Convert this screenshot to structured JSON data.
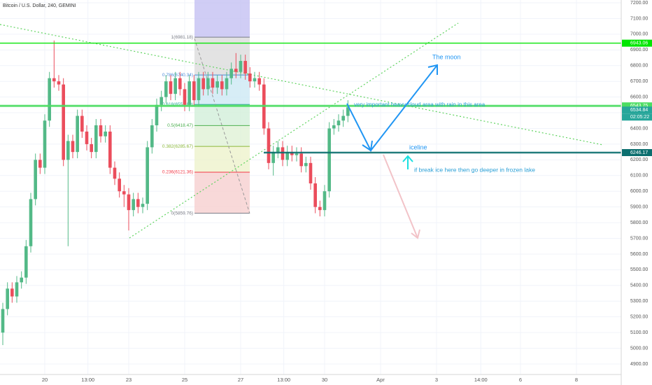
{
  "chart_data": {
    "type": "candlestick",
    "title": "Bitcoin / U.S. Dollar, 240, GEMINI",
    "x": [
      18.5,
      18.667,
      18.833,
      19,
      19.167,
      19.333,
      19.5,
      19.667,
      19.833,
      20,
      20.167,
      20.333,
      20.5,
      20.667,
      20.833,
      21,
      21.167,
      21.333,
      21.5,
      21.667,
      21.833,
      22,
      22.167,
      22.333,
      22.5,
      22.667,
      22.833,
      23,
      23.167,
      23.333,
      23.5,
      23.667,
      23.833,
      24,
      24.167,
      24.333,
      24.5,
      24.667,
      24.833,
      25,
      25.167,
      25.333,
      25.5,
      25.667,
      25.833,
      26,
      26.167,
      26.333,
      26.5,
      26.667,
      26.833,
      27,
      27.167,
      27.333,
      27.5,
      27.667,
      27.833,
      28,
      28.167,
      28.333,
      28.5,
      28.667,
      28.833,
      29,
      29.167,
      29.333,
      29.5,
      29.667,
      29.833,
      30,
      30.167,
      30.333,
      30.5,
      30.667,
      30.833
    ],
    "open": [
      5100,
      5250,
      5380,
      5330,
      5420,
      5450,
      5650,
      5950,
      6200,
      6150,
      6450,
      6720,
      6700,
      6680,
      6200,
      6320,
      6250,
      6480,
      6380,
      6300,
      6250,
      6420,
      6350,
      6380,
      6150,
      6080,
      6000,
      5980,
      5880,
      5950,
      5900,
      5920,
      6280,
      6420,
      6550,
      6600,
      6700,
      6620,
      6720,
      6650,
      6550,
      6700,
      6580,
      6720,
      6650,
      6720,
      6660,
      6700,
      6650,
      6720,
      6780,
      6760,
      6830,
      6750,
      6700,
      6720,
      6680,
      6400,
      6180,
      6250,
      6280,
      6200,
      6250,
      6230,
      6240,
      6160,
      6180,
      6050,
      5900,
      5880,
      6000,
      6400,
      6420,
      6450,
      6480
    ],
    "high": [
      5290,
      5420,
      5420,
      5460,
      5490,
      5690,
      5990,
      6240,
      6240,
      6490,
      6760,
      6960,
      6740,
      6720,
      6360,
      6360,
      6520,
      6520,
      6420,
      6340,
      6460,
      6460,
      6420,
      6420,
      6190,
      6120,
      6040,
      6020,
      5990,
      5990,
      5960,
      6320,
      6460,
      6590,
      6640,
      6740,
      6740,
      6760,
      6760,
      6690,
      6740,
      6740,
      6760,
      6760,
      6760,
      6760,
      6740,
      6740,
      6760,
      6820,
      6880,
      6870,
      6870,
      6790,
      6760,
      6760,
      6720,
      6440,
      6290,
      6320,
      6320,
      6290,
      6290,
      6280,
      6280,
      6220,
      6220,
      6090,
      5940,
      6040,
      6440,
      6460,
      6490,
      6520,
      6580
    ],
    "low": [
      5020,
      5210,
      5290,
      5290,
      5380,
      5410,
      5610,
      5910,
      6110,
      6110,
      6410,
      6660,
      6640,
      6160,
      5650,
      6210,
      6210,
      6340,
      6260,
      6210,
      6210,
      6310,
      6310,
      6110,
      6040,
      5960,
      5900,
      5750,
      5840,
      5860,
      5860,
      5880,
      6240,
      6380,
      6510,
      6560,
      6580,
      6580,
      6610,
      6510,
      6510,
      6540,
      6540,
      6610,
      6610,
      6620,
      6620,
      6610,
      6610,
      6680,
      6720,
      6720,
      6710,
      6660,
      6660,
      6640,
      6360,
      6140,
      6100,
      6210,
      6160,
      6160,
      6190,
      6190,
      6120,
      6120,
      6010,
      5860,
      5840,
      5840,
      5960,
      6360,
      6380,
      6410,
      6440
    ],
    "close": [
      5250,
      5380,
      5330,
      5420,
      5450,
      5650,
      5950,
      6200,
      6150,
      6450,
      6720,
      6700,
      6680,
      6200,
      6320,
      6250,
      6480,
      6380,
      6300,
      6250,
      6420,
      6350,
      6380,
      6150,
      6080,
      6000,
      5980,
      5880,
      5950,
      5900,
      5920,
      6280,
      6420,
      6550,
      6600,
      6700,
      6620,
      6720,
      6650,
      6550,
      6700,
      6580,
      6720,
      6650,
      6720,
      6660,
      6700,
      6650,
      6720,
      6780,
      6760,
      6830,
      6750,
      6700,
      6720,
      6680,
      6400,
      6180,
      6250,
      6280,
      6200,
      6250,
      6230,
      6240,
      6160,
      6180,
      6050,
      5900,
      5880,
      6000,
      6400,
      6420,
      6450,
      6480,
      6534.84
    ],
    "up_color": "#53b987",
    "down_color": "#eb4d5c",
    "xlim": [
      18.4,
      40.6
    ],
    "xticks": [
      20,
      {
        "value": 21.542,
        "label": "13:00"
      },
      23,
      25,
      27,
      {
        "value": 28.542,
        "label": "13:00"
      },
      30,
      {
        "value": 32,
        "label": "Apr"
      },
      {
        "value": 34,
        "label": "3"
      },
      {
        "value": 35.583,
        "label": "14:00"
      },
      {
        "value": 37,
        "label": "6"
      },
      {
        "value": 39,
        "label": "8"
      }
    ],
    "ylim": [
      4833,
      7218
    ],
    "yticks": [
      {
        "value": 4900,
        "label": "4900.00"
      },
      {
        "value": 5000,
        "label": "5000.00"
      },
      {
        "value": 5100,
        "label": "5100.00"
      },
      {
        "value": 5200,
        "label": "5200.00"
      },
      {
        "value": 5300,
        "label": "5300.00"
      },
      {
        "value": 5400,
        "label": "5400.00"
      },
      {
        "value": 5500,
        "label": "5500.00"
      },
      {
        "value": 5600,
        "label": "5600.00"
      },
      {
        "value": 5700,
        "label": "5700.00"
      },
      {
        "value": 5800,
        "label": "5800.00"
      },
      {
        "value": 5900,
        "label": "5900.00"
      },
      {
        "value": 6000,
        "label": "6000.00"
      },
      {
        "value": 6100,
        "label": "6100.00"
      },
      {
        "value": 6200,
        "label": "6200.00"
      },
      {
        "value": 6300,
        "label": "6300.00"
      },
      {
        "value": 6400,
        "label": "6400.00"
      },
      {
        "value": 6500,
        "label": "6500.00"
      },
      {
        "value": 6600,
        "label": "6600.00"
      },
      {
        "value": 6700,
        "label": "6700.00"
      },
      {
        "value": 6800,
        "label": "6800.00"
      },
      {
        "value": 6900,
        "label": "6900.00"
      },
      {
        "value": 7000,
        "label": "7000.00"
      },
      {
        "value": 7100,
        "label": "7100.00"
      },
      {
        "value": 7200,
        "label": "7200.00"
      }
    ],
    "grid": true,
    "horizontal_lines": [
      {
        "value": 6943.06,
        "color": "#00e600"
      },
      {
        "value": 6543.75,
        "color": "#4cdd62"
      },
      {
        "value": 6246.17,
        "color": "#0b6e6e"
      }
    ],
    "last_price": 6534.84,
    "last_price_color": "#26a69a",
    "countdown": "02:05:22",
    "fib_extension_color": "#c4c0f2",
    "fib_levels": [
      {
        "label": "1(6981.18)",
        "value": 6981.18,
        "color": "#787b86",
        "band_color": "#dcdcdc"
      },
      {
        "label": "0.786(6740.34)",
        "value": 6740.34,
        "color": "#4c8cd8",
        "band_color": "#cde8f4"
      },
      {
        "label": "0.618(6552.80)",
        "value": 6552.8,
        "color": "#26a69a",
        "band_color": "#d2efd9"
      },
      {
        "label": "0.5(6418.47)",
        "value": 6418.47,
        "color": "#4caf50",
        "band_color": "#e0f1d6"
      },
      {
        "label": "0.382(6285.67)",
        "value": 6285.67,
        "color": "#8bb83a",
        "band_color": "#eef3cc"
      },
      {
        "label": "0.236(6121.36)",
        "value": 6121.36,
        "color": "#f23645",
        "band_color": "#f6d0d0"
      },
      {
        "label": "0(5859.76)",
        "value": 5859.76,
        "color": "#787b86"
      }
    ],
    "annotations": [
      "The moon",
      "very important heavy cloud area with rain in this area",
      "iceline",
      "if break ice here then go deeper in frozen lake"
    ]
  }
}
